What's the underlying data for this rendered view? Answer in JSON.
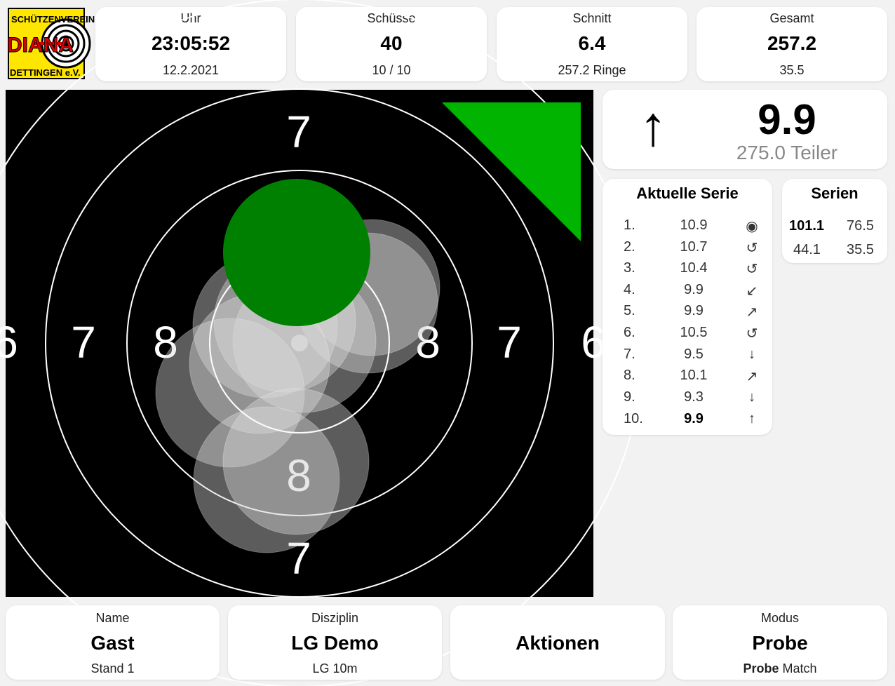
{
  "logo": {
    "line1": "SCHÜTZENVEREIN",
    "line2": "DIANA",
    "line3": "DETTINGEN e.V.",
    "icon": "target-logo-icon"
  },
  "stats": [
    {
      "label": "Uhr",
      "value": "23:05:52",
      "sub": "12.2.2021"
    },
    {
      "label": "Schüsse",
      "value": "40",
      "sub": "10 / 10"
    },
    {
      "label": "Schnitt",
      "value": "6.4",
      "sub": "257.2 Ringe"
    },
    {
      "label": "Gesamt",
      "value": "257.2",
      "sub": "35.5"
    }
  ],
  "target": {
    "ring_labels": [
      "7",
      "7",
      "7",
      "7",
      "8",
      "8",
      "8",
      "6",
      "6"
    ],
    "last_shot_color": "#008000",
    "indicator_color": "#00b400"
  },
  "last_shot": {
    "arrow": "↑",
    "value": "9.9",
    "teiler": "275.0 Teiler"
  },
  "aktuelle_serie": {
    "title": "Aktuelle Serie",
    "shots": [
      {
        "n": "1.",
        "v": "10.9",
        "dir": "◉"
      },
      {
        "n": "2.",
        "v": "10.7",
        "dir": "↺"
      },
      {
        "n": "3.",
        "v": "10.4",
        "dir": "↺"
      },
      {
        "n": "4.",
        "v": "9.9",
        "dir": "↙"
      },
      {
        "n": "5.",
        "v": "9.9",
        "dir": "↗"
      },
      {
        "n": "6.",
        "v": "10.5",
        "dir": "↺"
      },
      {
        "n": "7.",
        "v": "9.5",
        "dir": "↓"
      },
      {
        "n": "8.",
        "v": "10.1",
        "dir": "↗"
      },
      {
        "n": "9.",
        "v": "9.3",
        "dir": "↓"
      },
      {
        "n": "10.",
        "v": "9.9",
        "dir": "↑"
      }
    ]
  },
  "serien": {
    "title": "Serien",
    "values": [
      "101.1",
      "76.5",
      "44.1",
      "35.5"
    ]
  },
  "bottom": {
    "name": {
      "label": "Name",
      "value": "Gast",
      "sub": "Stand 1"
    },
    "disziplin": {
      "label": "Disziplin",
      "value": "LG Demo",
      "sub": "LG 10m"
    },
    "aktionen": {
      "value": "Aktionen"
    },
    "modus": {
      "label": "Modus",
      "value": "Probe",
      "sub_bold": "Probe",
      "sub_rest": " Match"
    }
  }
}
